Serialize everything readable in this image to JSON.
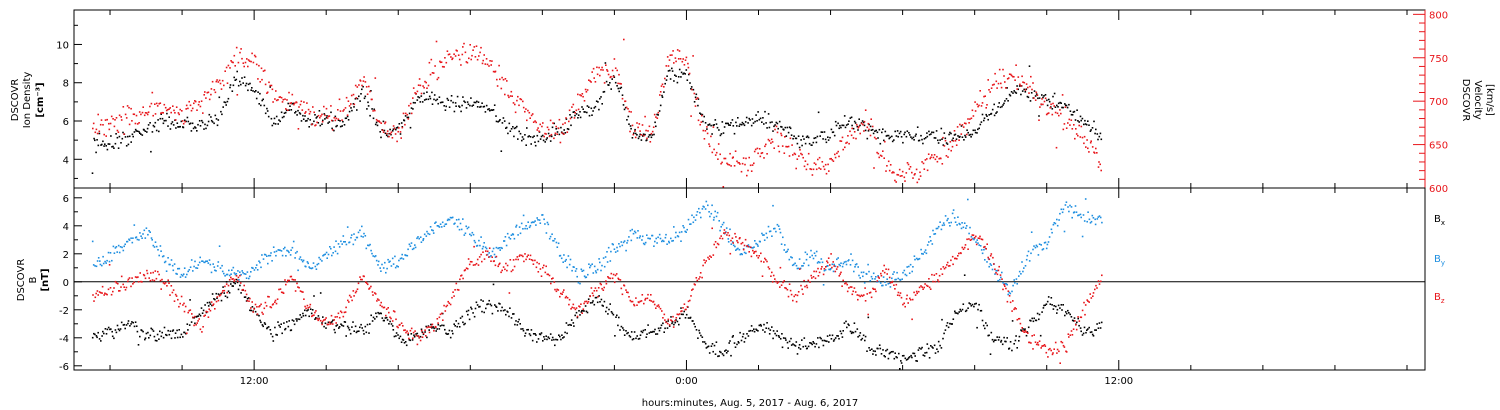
{
  "chart_data": [
    {
      "type": "scatter",
      "panel": "plasma",
      "ylabel_left": [
        "DSCOVR",
        "Ion Density",
        "[cm⁻³]"
      ],
      "ylabel_right": [
        "DSCOVR",
        "Velocity",
        "[km/s]"
      ],
      "ylim_left": [
        2.5,
        11.8
      ],
      "ylim_right": [
        600,
        805
      ],
      "yticks_left": [
        4,
        6,
        8,
        10
      ],
      "yticks_right": [
        600,
        650,
        700,
        750,
        800
      ],
      "colors": {
        "density": "#000000",
        "velocity": "#e8161b"
      },
      "grid": false,
      "series": [
        {
          "key": "density",
          "axis": "left",
          "x": [
            7.5,
            8.0,
            8.5,
            9.0,
            9.5,
            10.0,
            10.5,
            11.0,
            11.5,
            12.0,
            12.5,
            13.0,
            13.5,
            14.0,
            14.5,
            15.0,
            15.5,
            16.0,
            16.5,
            17.0,
            17.5,
            18.0,
            18.5,
            19.0,
            19.5,
            20.0,
            20.5,
            21.0,
            21.5,
            22.0,
            22.5,
            23.0,
            23.5,
            24.0,
            24.5,
            25.0,
            25.5,
            26.0,
            26.5,
            27.0,
            27.5,
            28.0,
            28.5,
            29.0,
            29.5,
            30.0,
            30.5,
            31.0,
            31.5,
            32.0,
            32.5,
            33.0,
            33.5,
            34.0,
            34.5,
            35.0,
            35.5
          ],
          "y": [
            4.8,
            4.9,
            5.2,
            5.6,
            6.0,
            5.9,
            5.8,
            6.0,
            8.5,
            7.6,
            6.0,
            6.8,
            6.0,
            6.0,
            6.0,
            7.5,
            5.5,
            5.6,
            7.2,
            7.1,
            7.0,
            7.0,
            6.6,
            5.8,
            5.2,
            5.2,
            5.6,
            6.4,
            6.8,
            8.5,
            5.3,
            5.2,
            8.5,
            8.5,
            5.8,
            5.6,
            6.0,
            6.2,
            5.8,
            5.2,
            5.0,
            5.4,
            6.0,
            5.6,
            5.2,
            5.2,
            5.2,
            5.2,
            5.2,
            5.6,
            6.5,
            7.6,
            7.5,
            7.0,
            6.8,
            6.0,
            5.3
          ]
        },
        {
          "key": "velocity",
          "axis": "right",
          "x": [
            7.5,
            8.0,
            8.5,
            9.0,
            9.5,
            10.0,
            10.5,
            11.0,
            11.5,
            12.0,
            12.5,
            13.0,
            13.5,
            14.0,
            14.5,
            15.0,
            15.5,
            16.0,
            16.5,
            17.0,
            17.5,
            18.0,
            18.5,
            19.0,
            19.5,
            20.0,
            20.5,
            21.0,
            21.5,
            22.0,
            22.5,
            23.0,
            23.5,
            24.0,
            24.5,
            25.0,
            25.5,
            26.0,
            26.5,
            27.0,
            27.5,
            28.0,
            28.5,
            29.0,
            29.5,
            30.0,
            30.5,
            31.0,
            31.5,
            32.0,
            32.5,
            33.0,
            33.5,
            34.0,
            34.5,
            35.0,
            35.5
          ],
          "y": [
            670,
            675,
            680,
            690,
            690,
            685,
            700,
            720,
            755,
            745,
            710,
            700,
            690,
            680,
            690,
            730,
            670,
            665,
            715,
            740,
            755,
            755,
            745,
            715,
            690,
            665,
            665,
            700,
            740,
            735,
            670,
            665,
            750,
            745,
            660,
            635,
            625,
            640,
            660,
            640,
            625,
            630,
            660,
            680,
            625,
            615,
            625,
            640,
            660,
            690,
            720,
            730,
            720,
            690,
            680,
            660,
            625
          ]
        }
      ]
    },
    {
      "type": "scatter",
      "panel": "magnetic-field",
      "ylabel": [
        "DSCOVR",
        "B",
        "[nT]"
      ],
      "ylim": [
        -6.3,
        6.7
      ],
      "yticks": [
        -6,
        -4,
        -2,
        0,
        2,
        4,
        6
      ],
      "zero_line": true,
      "grid": false,
      "legend": [
        "Bx",
        "By",
        "Bz"
      ],
      "legend_placement": "right",
      "colors": {
        "bx": "#000000",
        "by": "#1f8fe0",
        "bz": "#e8161b"
      },
      "series": [
        {
          "key": "bx",
          "x": [
            7.5,
            8.0,
            8.5,
            9.0,
            9.5,
            10.0,
            10.5,
            11.0,
            11.5,
            12.0,
            12.5,
            13.0,
            13.5,
            14.0,
            14.5,
            15.0,
            15.5,
            16.0,
            16.5,
            17.0,
            17.5,
            18.0,
            18.5,
            19.0,
            19.5,
            20.0,
            20.5,
            21.0,
            21.5,
            22.0,
            22.5,
            23.0,
            23.5,
            24.0,
            24.5,
            25.0,
            25.5,
            26.0,
            26.5,
            27.0,
            27.5,
            28.0,
            28.5,
            29.0,
            29.5,
            30.0,
            30.5,
            31.0,
            31.5,
            32.0,
            32.5,
            33.0,
            33.5,
            34.0,
            34.5,
            35.0,
            35.5
          ],
          "y": [
            -4.0,
            -3.5,
            -3.0,
            -4.0,
            -3.5,
            -3.8,
            -2.0,
            -1.0,
            0.0,
            -2.0,
            -3.5,
            -3.0,
            -2.0,
            -3.0,
            -3.0,
            -3.5,
            -2.0,
            -4.0,
            -4.0,
            -3.0,
            -3.5,
            -2.0,
            -1.5,
            -2.0,
            -3.5,
            -4.0,
            -4.0,
            -2.0,
            -1.0,
            -2.5,
            -4.0,
            -3.5,
            -3.0,
            -2.0,
            -4.5,
            -5.0,
            -4.0,
            -3.0,
            -4.0,
            -4.5,
            -4.5,
            -4.0,
            -3.0,
            -4.5,
            -5.0,
            -5.5,
            -5.0,
            -4.5,
            -2.0,
            -1.5,
            -4.0,
            -4.5,
            -3.0,
            -1.5,
            -2.0,
            -3.5,
            -3.0
          ]
        },
        {
          "key": "by",
          "x": [
            7.5,
            8.0,
            8.5,
            9.0,
            9.5,
            10.0,
            10.5,
            11.0,
            11.5,
            12.0,
            12.5,
            13.0,
            13.5,
            14.0,
            14.5,
            15.0,
            15.5,
            16.0,
            16.5,
            17.0,
            17.5,
            18.0,
            18.5,
            19.0,
            19.5,
            20.0,
            20.5,
            21.0,
            21.5,
            22.0,
            22.5,
            23.0,
            23.5,
            24.0,
            24.5,
            25.0,
            25.5,
            26.0,
            26.5,
            27.0,
            27.5,
            28.0,
            28.5,
            29.0,
            29.5,
            30.0,
            30.5,
            31.0,
            31.5,
            32.0,
            32.5,
            33.0,
            33.5,
            34.0,
            34.5,
            35.0,
            35.5
          ],
          "y": [
            1.0,
            2.0,
            3.0,
            3.5,
            1.5,
            0.5,
            1.5,
            1.0,
            0.5,
            1.0,
            2.0,
            2.5,
            1.0,
            2.0,
            3.0,
            3.5,
            1.0,
            1.5,
            3.0,
            4.0,
            4.5,
            3.5,
            2.0,
            3.0,
            4.0,
            4.5,
            2.0,
            0.5,
            1.0,
            2.5,
            3.5,
            3.0,
            3.0,
            4.0,
            5.5,
            4.0,
            2.0,
            3.0,
            4.0,
            1.0,
            2.0,
            1.0,
            1.5,
            0.5,
            0.0,
            0.5,
            2.0,
            4.0,
            4.5,
            3.0,
            1.0,
            -0.5,
            2.0,
            3.0,
            5.5,
            4.5,
            4.5
          ]
        },
        {
          "key": "bz",
          "x": [
            7.5,
            8.0,
            8.5,
            9.0,
            9.5,
            10.0,
            10.5,
            11.0,
            11.5,
            12.0,
            12.5,
            13.0,
            13.5,
            14.0,
            14.5,
            15.0,
            15.5,
            16.0,
            16.5,
            17.0,
            17.5,
            18.0,
            18.5,
            19.0,
            19.5,
            20.0,
            20.5,
            21.0,
            21.5,
            22.0,
            22.5,
            23.0,
            23.5,
            24.0,
            24.5,
            25.0,
            25.5,
            26.0,
            26.5,
            27.0,
            27.5,
            28.0,
            28.5,
            29.0,
            29.5,
            30.0,
            30.5,
            31.0,
            31.5,
            32.0,
            32.5,
            33.0,
            33.5,
            34.0,
            34.5,
            35.0,
            35.5
          ],
          "y": [
            -1.0,
            -0.5,
            0.0,
            0.5,
            0.0,
            -1.5,
            -3.0,
            -1.0,
            0.5,
            -2.0,
            -1.5,
            0.5,
            -2.0,
            -3.0,
            -2.0,
            0.5,
            -1.5,
            -3.0,
            -4.0,
            -3.0,
            -1.0,
            1.5,
            2.0,
            1.0,
            2.0,
            1.0,
            -1.0,
            -2.0,
            -0.5,
            0.5,
            -1.5,
            -1.0,
            -3.0,
            -1.5,
            1.5,
            3.5,
            3.0,
            2.0,
            0.0,
            -1.0,
            0.5,
            1.5,
            -0.5,
            -1.0,
            1.0,
            -1.5,
            -0.5,
            0.5,
            2.0,
            3.5,
            1.5,
            -1.5,
            -4.0,
            -5.0,
            -4.5,
            -2.0,
            0.5
          ]
        }
      ]
    },
    {
      "type": "time-axis",
      "xlim_hours": [
        7.0,
        44.5
      ],
      "major_ticks_hours": [
        12,
        24,
        36
      ],
      "tick_labels": [
        "12:00",
        "0:00",
        "12:00"
      ],
      "minor_tick_step_hours": 2,
      "xlabel": "hours:minutes, Aug.  5, 2017 - Aug.  6, 2017"
    }
  ]
}
